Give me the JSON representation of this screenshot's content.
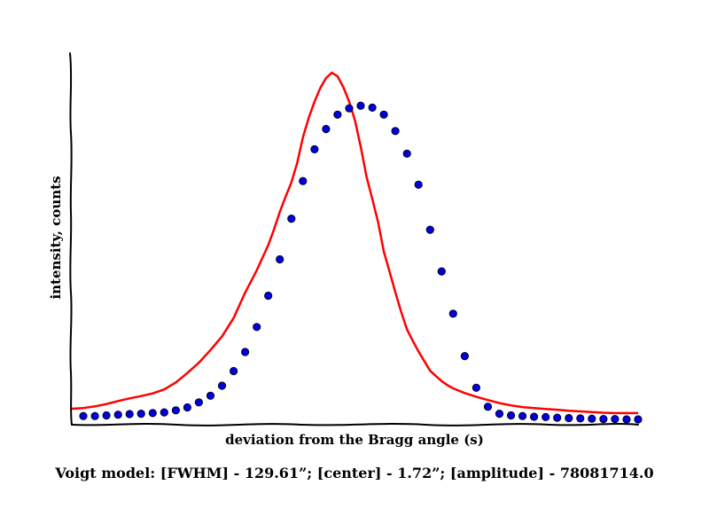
{
  "chart_data": {
    "type": "scatter",
    "xlabel": "deviation from the Bragg angle (s)",
    "ylabel": "intensity, counts",
    "caption": "Voigt model:   [FWHM] - 129.61”; [center] - 1.72”; [amplitude] - 78081714.0",
    "xlim": [
      0,
      49
    ],
    "ylim": [
      0,
      100
    ],
    "grid": false,
    "axis_style": "hand-drawn",
    "series": [
      {
        "kind": "points",
        "color": "#0000dd",
        "marker": "circle",
        "x": [
          1,
          2,
          3,
          4,
          5,
          6,
          7,
          8,
          9,
          10,
          11,
          12,
          13,
          14,
          15,
          16,
          17,
          18,
          19,
          20,
          21,
          22,
          23,
          24,
          25,
          26,
          27,
          28,
          29,
          30,
          31,
          32,
          33,
          34,
          35,
          36,
          37,
          38,
          39,
          40,
          41,
          42,
          43,
          44,
          45,
          46,
          47,
          48,
          49
        ],
        "y": [
          1.0,
          1.0,
          1.2,
          1.4,
          1.6,
          1.7,
          1.9,
          2.1,
          2.7,
          3.6,
          5.1,
          7.1,
          10.1,
          14.5,
          20.2,
          27.7,
          37.1,
          48.0,
          60.2,
          71.5,
          81.0,
          87.1,
          91.4,
          93.3,
          94.1,
          93.5,
          91.4,
          86.5,
          79.7,
          70.4,
          56.9,
          44.4,
          31.7,
          19.0,
          9.5,
          3.8,
          1.7,
          1.2,
          1.0,
          0.8,
          0.7,
          0.5,
          0.4,
          0.3,
          0.2,
          0.1,
          0.1,
          0.0,
          0.0
        ]
      },
      {
        "kind": "line",
        "color": "#ff0000",
        "x": [
          0,
          1,
          2,
          3,
          4,
          5,
          6,
          7,
          8,
          9,
          10,
          11,
          12,
          13,
          14,
          15,
          16,
          17,
          17.5,
          18,
          18.5,
          19,
          19.5,
          20,
          20.5,
          21,
          21.5,
          22,
          22.5,
          23,
          23.5,
          24,
          24.5,
          25,
          25.5,
          26,
          26.5,
          27,
          27.5,
          28,
          28.5,
          29,
          29.5,
          30,
          30.5,
          31,
          31.5,
          32,
          32.5,
          33,
          34,
          35,
          36,
          37,
          38,
          39,
          40,
          41,
          42,
          43,
          44,
          45,
          46,
          47,
          48,
          49
        ],
        "y": [
          3.2,
          3.4,
          3.9,
          4.6,
          5.5,
          6.3,
          7.0,
          7.8,
          9.0,
          11.1,
          13.9,
          17.0,
          20.8,
          24.9,
          30.4,
          38.0,
          44.7,
          52.3,
          57.0,
          62.2,
          66.8,
          71.1,
          76.9,
          84.6,
          90.4,
          95.3,
          99.4,
          102.4,
          104.0,
          102.9,
          99.6,
          95.3,
          89.7,
          81.8,
          72.9,
          66.1,
          59.2,
          50.3,
          44.3,
          38.1,
          32.2,
          27.0,
          23.6,
          20.4,
          17.5,
          14.6,
          13.0,
          11.5,
          10.3,
          9.3,
          7.9,
          6.8,
          5.8,
          4.9,
          4.2,
          3.7,
          3.4,
          3.1,
          2.9,
          2.6,
          2.4,
          2.2,
          2.0,
          1.9,
          1.9,
          1.9
        ]
      }
    ]
  }
}
